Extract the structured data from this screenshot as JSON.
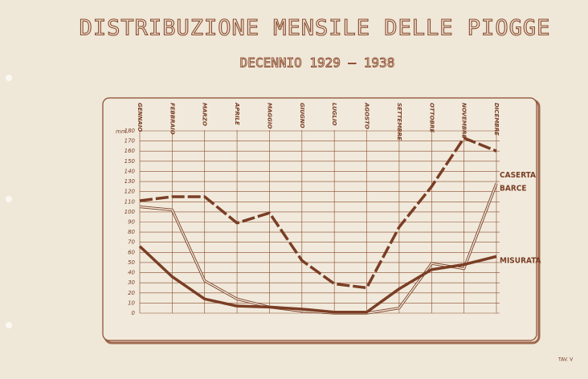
{
  "chart_data": {
    "type": "line",
    "title": "DISTRIBUZIONE MENSILE DELLE PIOGGE",
    "subtitle": "DECENNIO 1929 — 1938",
    "y_label": "mm.",
    "footer": "TAV. V",
    "categories": [
      "GENNAIO",
      "FEBBRAIO",
      "MARZO",
      "APRILE",
      "MAGGIO",
      "GIUGNO",
      "LUGLIO",
      "AGOSTO",
      "SETTEMBRE",
      "OTTOBRE",
      "NOVEMBRE",
      "DICEMBRE"
    ],
    "ylim": [
      0,
      180
    ],
    "yticks": [
      0,
      10,
      20,
      30,
      40,
      50,
      60,
      70,
      80,
      90,
      100,
      110,
      120,
      130,
      140,
      150,
      160,
      170,
      180
    ],
    "grid": true,
    "series": [
      {
        "name": "CASERTA",
        "color": "#7a3e25",
        "style": "dashed",
        "values": [
          111,
          115,
          115,
          89,
          99,
          52,
          29,
          25,
          85,
          125,
          173,
          160
        ]
      },
      {
        "name": "BARCE",
        "color": "#7a3e25",
        "style": "double",
        "values": [
          105,
          102,
          32,
          14,
          6,
          2,
          0,
          0,
          5,
          49,
          44,
          128
        ]
      },
      {
        "name": "MISURATA",
        "color": "#7a3e25",
        "style": "solid",
        "values": [
          66,
          36,
          14,
          7,
          6,
          4,
          1,
          1,
          24,
          43,
          48,
          56
        ]
      }
    ]
  }
}
